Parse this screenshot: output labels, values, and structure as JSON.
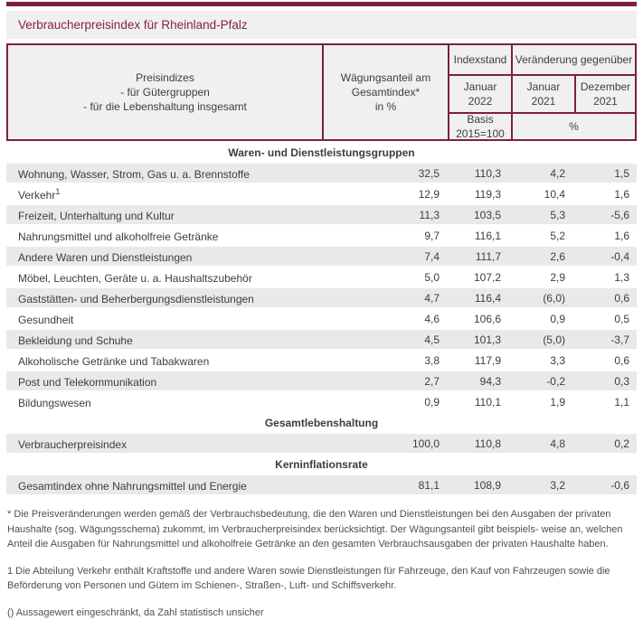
{
  "title_bar": {
    "title": "Verbraucherpreisindex für Rheinland-Pfalz"
  },
  "colors": {
    "maroon_accent": "#7d2139",
    "title_text": "#8a2339",
    "header_bg": "#f0f0f0",
    "row_stripe": "#e9e9e9",
    "body_text": "#3d3d3d"
  },
  "table": {
    "header": {
      "col_pricegroups": "Preisindizes\n- für Gütergruppen\n- für die Lebenshaltung insgesamt",
      "col_weight": "Wägungsanteil am\nGesamtindex*\nin %",
      "indexstand": "Indexstand",
      "veraenderung": "Veränderung gegenüber",
      "jan_2022": "Januar\n2022",
      "jan_2021": "Januar\n2021",
      "dez_2021": "Dezember\n2021",
      "basis": "Basis\n2015=100",
      "percent": "%"
    },
    "sections": {
      "goods_services": "Waren- und Dienstleistungsgruppen",
      "total": "Gesamtlebenshaltung",
      "core_inflation": "Kerninflationsrate"
    },
    "rows": [
      {
        "label": "Wohnung, Wasser, Strom, Gas u. a. Brennstoffe",
        "weight": "32,5",
        "index": "110,3",
        "vs_jan_2021": "4,2",
        "vs_dez_2021": "1,5"
      },
      {
        "label": "Verkehr",
        "sup": "1",
        "weight": "12,9",
        "index": "119,3",
        "vs_jan_2021": "10,4",
        "vs_dez_2021": "1,6"
      },
      {
        "label": "Freizeit, Unterhaltung und Kultur",
        "weight": "11,3",
        "index": "103,5",
        "vs_jan_2021": "5,3",
        "vs_dez_2021": "-5,6"
      },
      {
        "label": "Nahrungsmittel und alkoholfreie Getränke",
        "weight": "9,7",
        "index": "116,1",
        "vs_jan_2021": "5,2",
        "vs_dez_2021": "1,6"
      },
      {
        "label": "Andere Waren und Dienstleistungen",
        "weight": "7,4",
        "index": "111,7",
        "vs_jan_2021": "2,6",
        "vs_dez_2021": "-0,4"
      },
      {
        "label": "Möbel, Leuchten, Geräte u. a. Haushaltszubehör",
        "weight": "5,0",
        "index": "107,2",
        "vs_jan_2021": "2,9",
        "vs_dez_2021": "1,3"
      },
      {
        "label": "Gaststätten- und Beherbergungsdienstleistungen",
        "weight": "4,7",
        "index": "116,4",
        "vs_jan_2021": "(6,0)",
        "vs_dez_2021": "0,6"
      },
      {
        "label": "Gesundheit",
        "weight": "4,6",
        "index": "106,6",
        "vs_jan_2021": "0,9",
        "vs_dez_2021": "0,5"
      },
      {
        "label": "Bekleidung und Schuhe",
        "weight": "4,5",
        "index": "101,3",
        "vs_jan_2021": "(5,0)",
        "vs_dez_2021": "-3,7"
      },
      {
        "label": "Alkoholische Getränke und Tabakwaren",
        "weight": "3,8",
        "index": "117,9",
        "vs_jan_2021": "3,3",
        "vs_dez_2021": "0,6"
      },
      {
        "label": "Post und Telekommunikation",
        "weight": "2,7",
        "index": "94,3",
        "vs_jan_2021": "-0,2",
        "vs_dez_2021": "0,3"
      },
      {
        "label": "Bildungswesen",
        "weight": "0,9",
        "index": "110,1",
        "vs_jan_2021": "1,9",
        "vs_dez_2021": "1,1"
      },
      {
        "label": "Verbraucherpreisindex",
        "weight": "100,0",
        "index": "110,8",
        "vs_jan_2021": "4,8",
        "vs_dez_2021": "0,2"
      },
      {
        "label": "Gesamtindex ohne Nahrungsmittel und Energie",
        "weight": "81,1",
        "index": "108,9",
        "vs_jan_2021": "3,2",
        "vs_dez_2021": "-0,6"
      }
    ]
  },
  "footnotes": [
    "* Die Preisveränderungen werden gemäß der Verbrauchsbedeutung, die den Waren und Dienstleistungen bei den Ausgaben der privaten Haushalte (sog. Wägungsschema) zukommt, im Verbraucherpreisindex berücksichtigt. Der Wägungsanteil gibt beispiels- weise an, welchen Anteil die Ausgaben für Nahrungsmittel und alkoholfreie Getränke an den gesamten Verbrauchsausgaben der privaten Haushalte haben.",
    "1 Die Abteilung Verkehr enthält Kraftstoffe und andere Waren sowie Dienstleistungen für Fahrzeuge, den Kauf von Fahrzeugen sowie die Beförderung von Personen und Gütern im Schienen-, Straßen-, Luft- und Schiffsverkehr.",
    "() Aussagewert eingeschränkt, da Zahl statistisch unsicher"
  ]
}
